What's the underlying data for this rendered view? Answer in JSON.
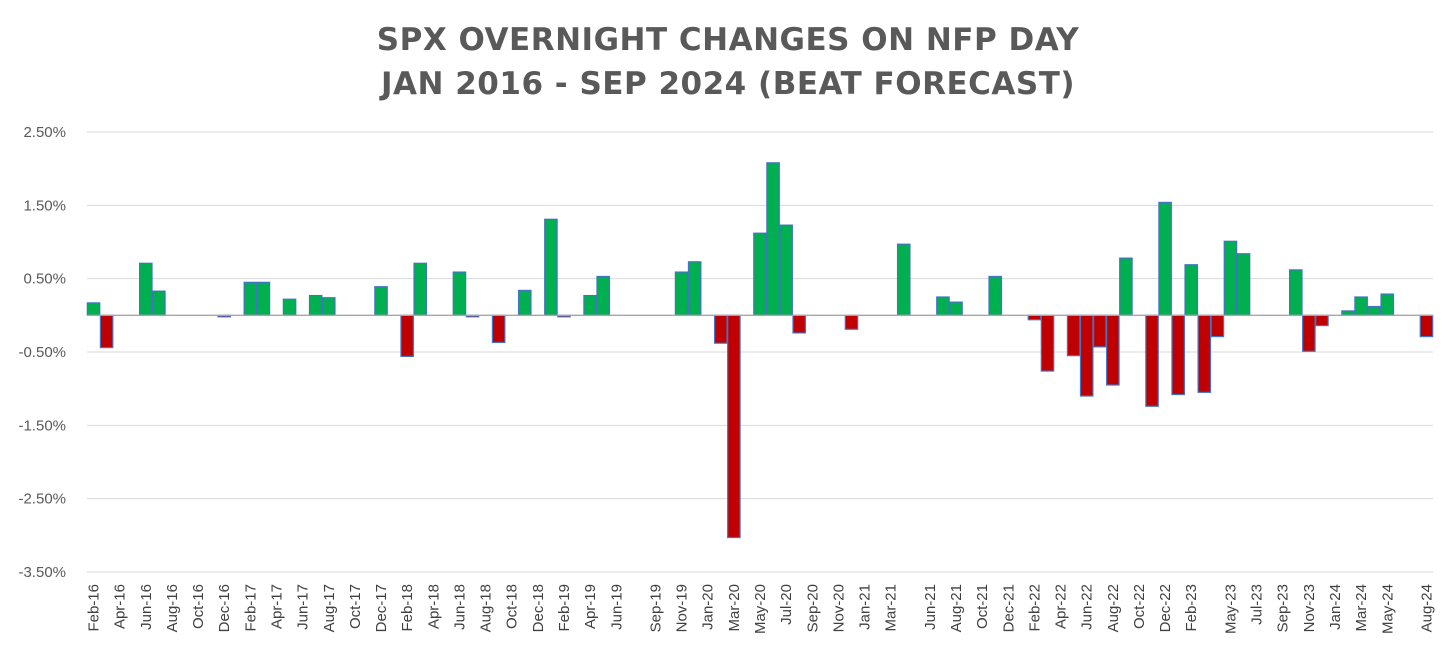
{
  "chart_data": {
    "type": "bar",
    "title_lines": [
      "SPX OVERNIGHT CHANGES ON NFP DAY",
      "JAN 2016 - SEP 2024 (BEAT FORECAST)"
    ],
    "title": "SPX OVERNIGHT CHANGES ON NFP DAY JAN 2016 - SEP 2024 (BEAT FORECAST)",
    "xlabel": "",
    "ylabel": "",
    "ylim": [
      -3.5,
      2.5
    ],
    "grid": true,
    "legend": "none",
    "y_ticks": [
      2.5,
      1.5,
      0.5,
      -0.5,
      -1.5,
      -2.5,
      -3.5
    ],
    "y_tick_labels": [
      "2.50%",
      "1.50%",
      "0.50%",
      "-0.50%",
      "-1.50%",
      "-2.50%",
      "-3.50%"
    ],
    "positive_color": "#00B050",
    "negative_color": "#C00000",
    "bar_border_color": "#4472C4",
    "gridline_color": "#D9D9D9",
    "categories": [
      "Feb-16",
      "Mar-16",
      "Apr-16",
      "May-16",
      "Jun-16",
      "Jul-16",
      "Aug-16",
      "Sep-16",
      "Oct-16",
      "Nov-16",
      "Dec-16",
      "Jan-17",
      "Feb-17",
      "Mar-17",
      "Apr-17",
      "May-17",
      "Jun-17",
      "Jul-17",
      "Aug-17",
      "Sep-17",
      "Oct-17",
      "Nov-17",
      "Dec-17",
      "Jan-18",
      "Feb-18",
      "Mar-18",
      "Apr-18",
      "May-18",
      "Jun-18",
      "Jul-18",
      "Aug-18",
      "Sep-18",
      "Oct-18",
      "Nov-18",
      "Dec-18",
      "Jan-19",
      "Feb-19",
      "Mar-19",
      "Apr-19",
      "May-19",
      "Jun-19",
      "Jul-19",
      "Aug-19",
      "Sep-19",
      "Oct-19",
      "Nov-19",
      "Dec-19",
      "Jan-20",
      "Feb-20",
      "Mar-20",
      "Apr-20",
      "May-20",
      "Jun-20",
      "Jul-20",
      "Aug-20",
      "Sep-20",
      "Oct-20",
      "Nov-20",
      "Dec-20",
      "Jan-21",
      "Feb-21",
      "Mar-21",
      "Apr-21",
      "May-21",
      "Jun-21",
      "Jul-21",
      "Aug-21",
      "Sep-21",
      "Oct-21",
      "Nov-21",
      "Dec-21",
      "Jan-22",
      "Feb-22",
      "Mar-22",
      "Apr-22",
      "May-22",
      "Jun-22",
      "Jul-22",
      "Aug-22",
      "Sep-22",
      "Oct-22",
      "Nov-22",
      "Dec-22",
      "Jan-23",
      "Feb-23",
      "Mar-23",
      "Apr-23",
      "May-23",
      "Jun-23",
      "Jul-23",
      "Aug-23",
      "Sep-23",
      "Oct-23",
      "Nov-23",
      "Dec-23",
      "Jan-24",
      "Feb-24",
      "Mar-24",
      "Apr-24",
      "May-24",
      "Jun-24",
      "Jul-24",
      "Aug-24"
    ],
    "x_tick_labels": [
      "Feb-16",
      "Apr-16",
      "Jun-16",
      "Aug-16",
      "Oct-16",
      "Dec-16",
      "Feb-17",
      "Apr-17",
      "Jun-17",
      "Aug-17",
      "Oct-17",
      "Dec-17",
      "Feb-18",
      "Apr-18",
      "Jun-18",
      "Aug-18",
      "Oct-18",
      "Dec-18",
      "Feb-19",
      "Apr-19",
      "Jun-19",
      "Sep-19",
      "Nov-19",
      "Jan-20",
      "Mar-20",
      "May-20",
      "Jul-20",
      "Sep-20",
      "Nov-20",
      "Jan-21",
      "Mar-21",
      "Jun-21",
      "Aug-21",
      "Oct-21",
      "Dec-21",
      "Feb-22",
      "Apr-22",
      "Jun-22",
      "Aug-22",
      "Oct-22",
      "Dec-22",
      "Feb-23",
      "May-23",
      "Jul-23",
      "Sep-23",
      "Nov-23",
      "Jan-24",
      "Mar-24",
      "May-24",
      "Aug-24"
    ],
    "values": [
      0.17,
      -0.44,
      0,
      0,
      0.71,
      0.33,
      0,
      0,
      0,
      0,
      -0.02,
      0,
      0.45,
      0.45,
      0,
      0.22,
      0,
      0.27,
      0.24,
      0,
      0,
      0,
      0.39,
      0,
      -0.56,
      0.71,
      0,
      0,
      0.59,
      -0.02,
      0,
      -0.37,
      0,
      0.34,
      0,
      1.31,
      -0.02,
      0,
      0.27,
      0.53,
      0,
      0,
      0,
      0,
      0,
      0.59,
      0.73,
      0,
      -0.38,
      -3.03,
      0,
      1.12,
      2.08,
      1.23,
      -0.24,
      0,
      0,
      0,
      -0.19,
      0,
      0,
      0,
      0.97,
      0,
      0,
      0.25,
      0.18,
      0,
      0,
      0.53,
      0,
      0,
      -0.06,
      -0.76,
      0,
      -0.55,
      -1.1,
      -0.43,
      -0.95,
      0.78,
      0,
      -1.24,
      1.54,
      -1.08,
      0.69,
      -1.05,
      -0.29,
      1.01,
      0.84,
      0,
      0,
      0,
      0.62,
      -0.49,
      -0.14,
      0,
      0.06,
      0.25,
      0.12,
      0.29,
      0,
      0,
      -0.29
    ]
  }
}
